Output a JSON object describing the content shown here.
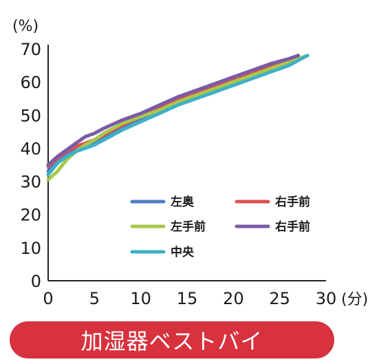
{
  "chart_data": {
    "type": "line",
    "y_unit_label": "(%)",
    "x_unit_label": "(分)",
    "xlim": [
      0,
      30
    ],
    "ylim": [
      0,
      70
    ],
    "x_ticks": [
      0,
      5,
      10,
      15,
      20,
      25,
      30
    ],
    "y_ticks": [
      0,
      10,
      20,
      30,
      40,
      50,
      60,
      70
    ],
    "grid": false,
    "legend_position": "inside-bottom-right",
    "series": [
      {
        "name": "左奥",
        "color": "#4a7fc7",
        "x": [
          0,
          1,
          2,
          3,
          4,
          5,
          6,
          8,
          10,
          12,
          14,
          16,
          18,
          20,
          22,
          24,
          26,
          28
        ],
        "y": [
          33,
          36,
          38,
          39.5,
          40.5,
          41.5,
          43,
          46,
          48.5,
          51,
          53.5,
          55.5,
          57.5,
          59.5,
          61.5,
          63.5,
          65.5,
          68
        ]
      },
      {
        "name": "右手前",
        "color": "#d9534f",
        "x": [
          0,
          1,
          2,
          3,
          4,
          5,
          6,
          8,
          10,
          12,
          14,
          16,
          18,
          20,
          22,
          24,
          26,
          27
        ],
        "y": [
          34.5,
          37,
          39,
          40.5,
          41.5,
          42.5,
          44,
          47,
          49.5,
          52,
          54.5,
          56.5,
          58.5,
          60.5,
          62.5,
          64.5,
          66.5,
          68
        ]
      },
      {
        "name": "左手前",
        "color": "#a8c84a",
        "x": [
          0,
          1,
          2,
          3,
          4,
          5,
          6,
          8,
          10,
          12,
          14,
          16,
          18,
          20,
          22,
          24,
          26,
          28
        ],
        "y": [
          30.5,
          33,
          36.5,
          39,
          41,
          42.5,
          44.5,
          47.5,
          49.5,
          51.5,
          54,
          56,
          58,
          60,
          62,
          64,
          66,
          68
        ]
      },
      {
        "name": "右手前",
        "color": "#7b5aa6",
        "x": [
          0,
          1,
          2,
          3,
          4,
          5,
          6,
          8,
          10,
          12,
          14,
          16,
          18,
          20,
          22,
          24,
          26,
          27
        ],
        "y": [
          35,
          37.5,
          39.5,
          41.5,
          43.5,
          44.5,
          46,
          48.5,
          50.5,
          53,
          55.5,
          57.5,
          59.5,
          61.5,
          63.5,
          65.5,
          67,
          68
        ]
      },
      {
        "name": "中央",
        "color": "#3fb0c8",
        "x": [
          0,
          1,
          2,
          3,
          4,
          5,
          6,
          8,
          10,
          12,
          14,
          16,
          18,
          20,
          22,
          24,
          26,
          28
        ],
        "y": [
          32,
          35.5,
          37.5,
          39,
          40,
          41,
          42.5,
          45.5,
          48,
          50.5,
          53,
          55,
          57,
          59,
          61,
          63,
          65,
          68
        ]
      }
    ]
  },
  "banner": {
    "text": "加湿器ベストバイ",
    "color": "#d8323f"
  }
}
